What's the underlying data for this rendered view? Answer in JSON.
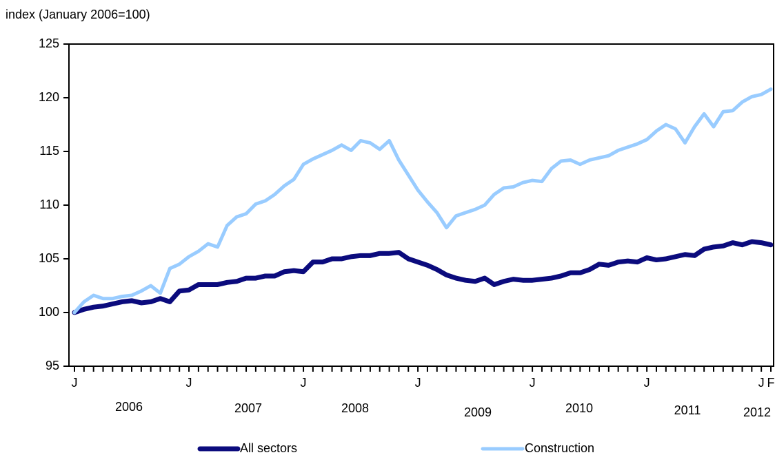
{
  "chart_data": {
    "type": "line",
    "y_axis_label": "index (January 2006=100)",
    "categories": [
      "J",
      null,
      null,
      null,
      null,
      null,
      null,
      null,
      null,
      null,
      null,
      null,
      "J",
      null,
      null,
      null,
      null,
      null,
      null,
      null,
      null,
      null,
      null,
      null,
      "J",
      null,
      null,
      null,
      null,
      null,
      null,
      null,
      null,
      null,
      null,
      null,
      "J",
      null,
      null,
      null,
      null,
      null,
      null,
      null,
      null,
      null,
      null,
      null,
      "J",
      null,
      null,
      null,
      null,
      null,
      null,
      null,
      null,
      null,
      null,
      null,
      "J",
      null,
      null,
      null,
      null,
      null,
      null,
      null,
      null,
      null,
      null,
      null,
      "J",
      "F"
    ],
    "year_labels": [
      "2006",
      "2007",
      "2008",
      "2009",
      "2010",
      "2011",
      "2012"
    ],
    "series": [
      {
        "name": "All sectors",
        "color": "#0b0b7d",
        "values": [
          100,
          100.3,
          100.5,
          100.6,
          100.8,
          101.0,
          101.1,
          100.9,
          101.0,
          101.3,
          101.0,
          102.0,
          102.1,
          102.6,
          102.6,
          102.6,
          102.8,
          102.9,
          103.2,
          103.2,
          103.4,
          103.4,
          103.8,
          103.9,
          103.8,
          104.7,
          104.7,
          105.0,
          105.0,
          105.2,
          105.3,
          105.3,
          105.5,
          105.5,
          105.6,
          105.0,
          104.7,
          104.4,
          104.0,
          103.5,
          103.2,
          103.0,
          102.9,
          103.2,
          102.6,
          102.9,
          103.1,
          103.0,
          103.0,
          103.1,
          103.2,
          103.4,
          103.7,
          103.7,
          104.0,
          104.5,
          104.4,
          104.7,
          104.8,
          104.7,
          105.1,
          104.9,
          105.0,
          105.2,
          105.4,
          105.3,
          105.9,
          106.1,
          106.2,
          106.5,
          106.3,
          106.6,
          106.5,
          106.3
        ]
      },
      {
        "name": "Construction",
        "color": "#99ccff",
        "values": [
          100,
          101.0,
          101.6,
          101.3,
          101.3,
          101.5,
          101.6,
          102.0,
          102.5,
          101.8,
          104.1,
          104.5,
          105.2,
          105.7,
          106.4,
          106.1,
          108.1,
          108.9,
          109.2,
          110.1,
          110.4,
          111.0,
          111.8,
          112.4,
          113.8,
          114.3,
          114.7,
          115.1,
          115.6,
          115.1,
          116.0,
          115.8,
          115.2,
          116.0,
          114.2,
          112.8,
          111.4,
          110.3,
          109.3,
          107.9,
          109.0,
          109.3,
          109.6,
          110.0,
          111.0,
          111.6,
          111.7,
          112.1,
          112.3,
          112.2,
          113.4,
          114.1,
          114.2,
          113.8,
          114.2,
          114.4,
          114.6,
          115.1,
          115.4,
          115.7,
          116.1,
          116.9,
          117.5,
          117.1,
          115.8,
          117.3,
          118.5,
          117.3,
          118.7,
          118.8,
          119.6,
          120.1,
          120.3,
          120.8
        ]
      }
    ],
    "ylim": [
      95,
      125
    ],
    "yticks": [
      95,
      100,
      105,
      110,
      115,
      120,
      125
    ],
    "grid": false
  }
}
